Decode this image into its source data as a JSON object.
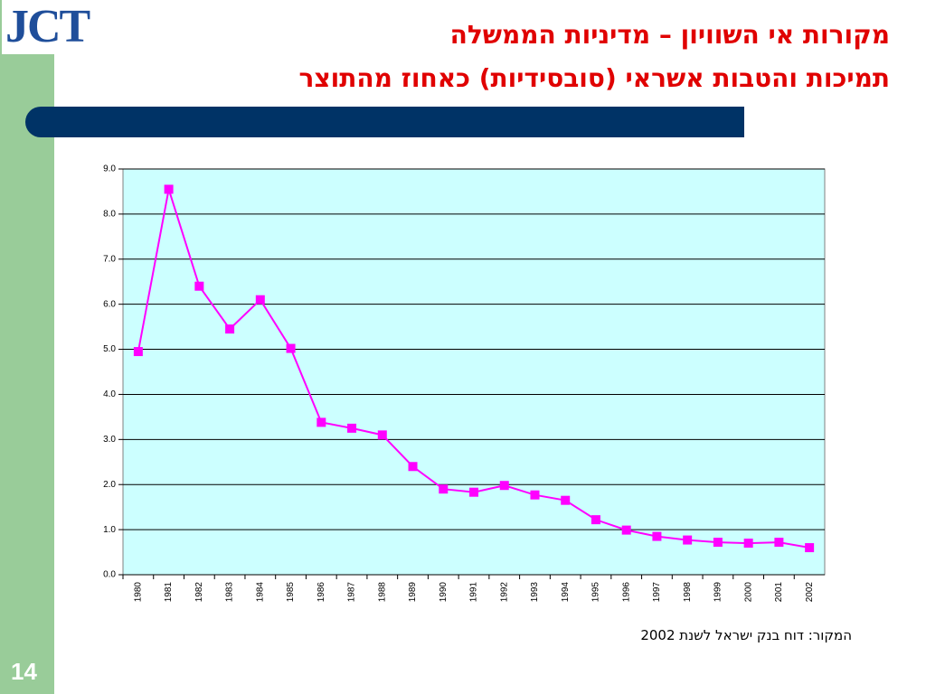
{
  "slide": {
    "logo": "JCT",
    "title_line_1": "מקורות אי השוויון – מדיניות הממשלה",
    "title_line_2": "תמיכות והטבות אשראי (סובסידיות) כאחוז מהתוצר",
    "source": "המקור: דוח בנק ישראל לשנת 2002",
    "page_number": "14"
  },
  "chart_data": {
    "type": "line",
    "categories": [
      "1980",
      "1981",
      "1982",
      "1983",
      "1984",
      "1985",
      "1986",
      "1987",
      "1988",
      "1989",
      "1990",
      "1991",
      "1992",
      "1993",
      "1994",
      "1995",
      "1996",
      "1997",
      "1998",
      "1999",
      "2000",
      "2001",
      "2002"
    ],
    "values": [
      4.95,
      8.55,
      6.4,
      5.45,
      6.1,
      5.02,
      3.38,
      3.25,
      3.1,
      2.4,
      1.9,
      1.83,
      1.98,
      1.77,
      1.65,
      1.22,
      0.99,
      0.85,
      0.77,
      0.72,
      0.7,
      0.72,
      0.6
    ],
    "color": "#ff00ff",
    "ylim": [
      0,
      9
    ],
    "yticks": [
      {
        "value": 0,
        "label": "0.0"
      },
      {
        "value": 1,
        "label": "1.0"
      },
      {
        "value": 2,
        "label": "2.0"
      },
      {
        "value": 3,
        "label": "3.0"
      },
      {
        "value": 4,
        "label": "4.0"
      },
      {
        "value": 5,
        "label": "5.0"
      },
      {
        "value": 6,
        "label": "6.0"
      },
      {
        "value": 7,
        "label": "7.0"
      },
      {
        "value": 8,
        "label": "8.0"
      },
      {
        "value": 9,
        "label": "9.0"
      }
    ],
    "grid": true
  }
}
